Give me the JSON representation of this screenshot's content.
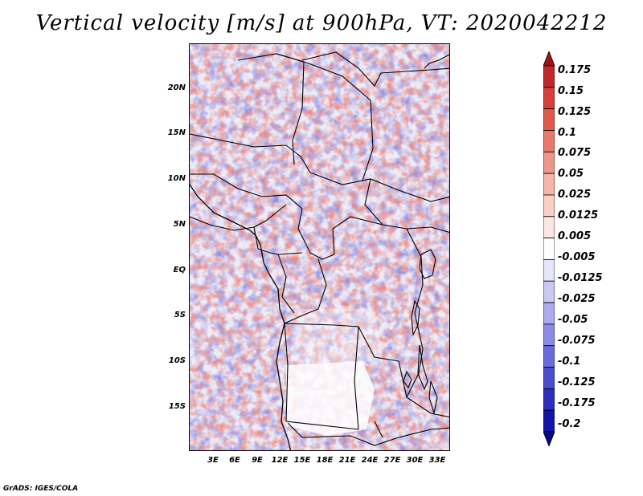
{
  "title": "Vertical velocity [m/s] at 900hPa, VT: 2020042212",
  "credit": "GrADS: IGES/COLA",
  "map": {
    "lat_labels": [
      "20N",
      "15N",
      "10N",
      "5N",
      "EQ",
      "5S",
      "10S",
      "15S"
    ],
    "lat_values": [
      20,
      15,
      10,
      5,
      0,
      -5,
      -10,
      -15
    ],
    "lon_labels": [
      "3E",
      "6E",
      "9E",
      "12E",
      "15E",
      "18E",
      "21E",
      "24E",
      "27E",
      "30E",
      "33E"
    ],
    "lon_values": [
      3,
      6,
      9,
      12,
      15,
      18,
      21,
      24,
      27,
      30,
      33
    ],
    "lon_range": [
      0,
      35
    ],
    "lat_range": [
      -20,
      25
    ]
  },
  "colorbar": {
    "labels": [
      "0.175",
      "0.15",
      "0.125",
      "0.1",
      "0.075",
      "0.05",
      "0.025",
      "0.0125",
      "0.005",
      "-0.005",
      "-0.0125",
      "-0.025",
      "-0.05",
      "-0.075",
      "-0.1",
      "-0.125",
      "-0.175",
      "-0.2"
    ],
    "colors": [
      "#a50f15",
      "#c1272d",
      "#d6403a",
      "#e05a4f",
      "#e87a6c",
      "#ef968a",
      "#f5b5aa",
      "#f9cfc7",
      "#fce6e1",
      "#ffffff",
      "#e6e6fa",
      "#c9c9f4",
      "#ababee",
      "#8c8ce6",
      "#6b6bdc",
      "#4b4bcf",
      "#2d2dbf",
      "#1414a8",
      "#06068c"
    ]
  }
}
